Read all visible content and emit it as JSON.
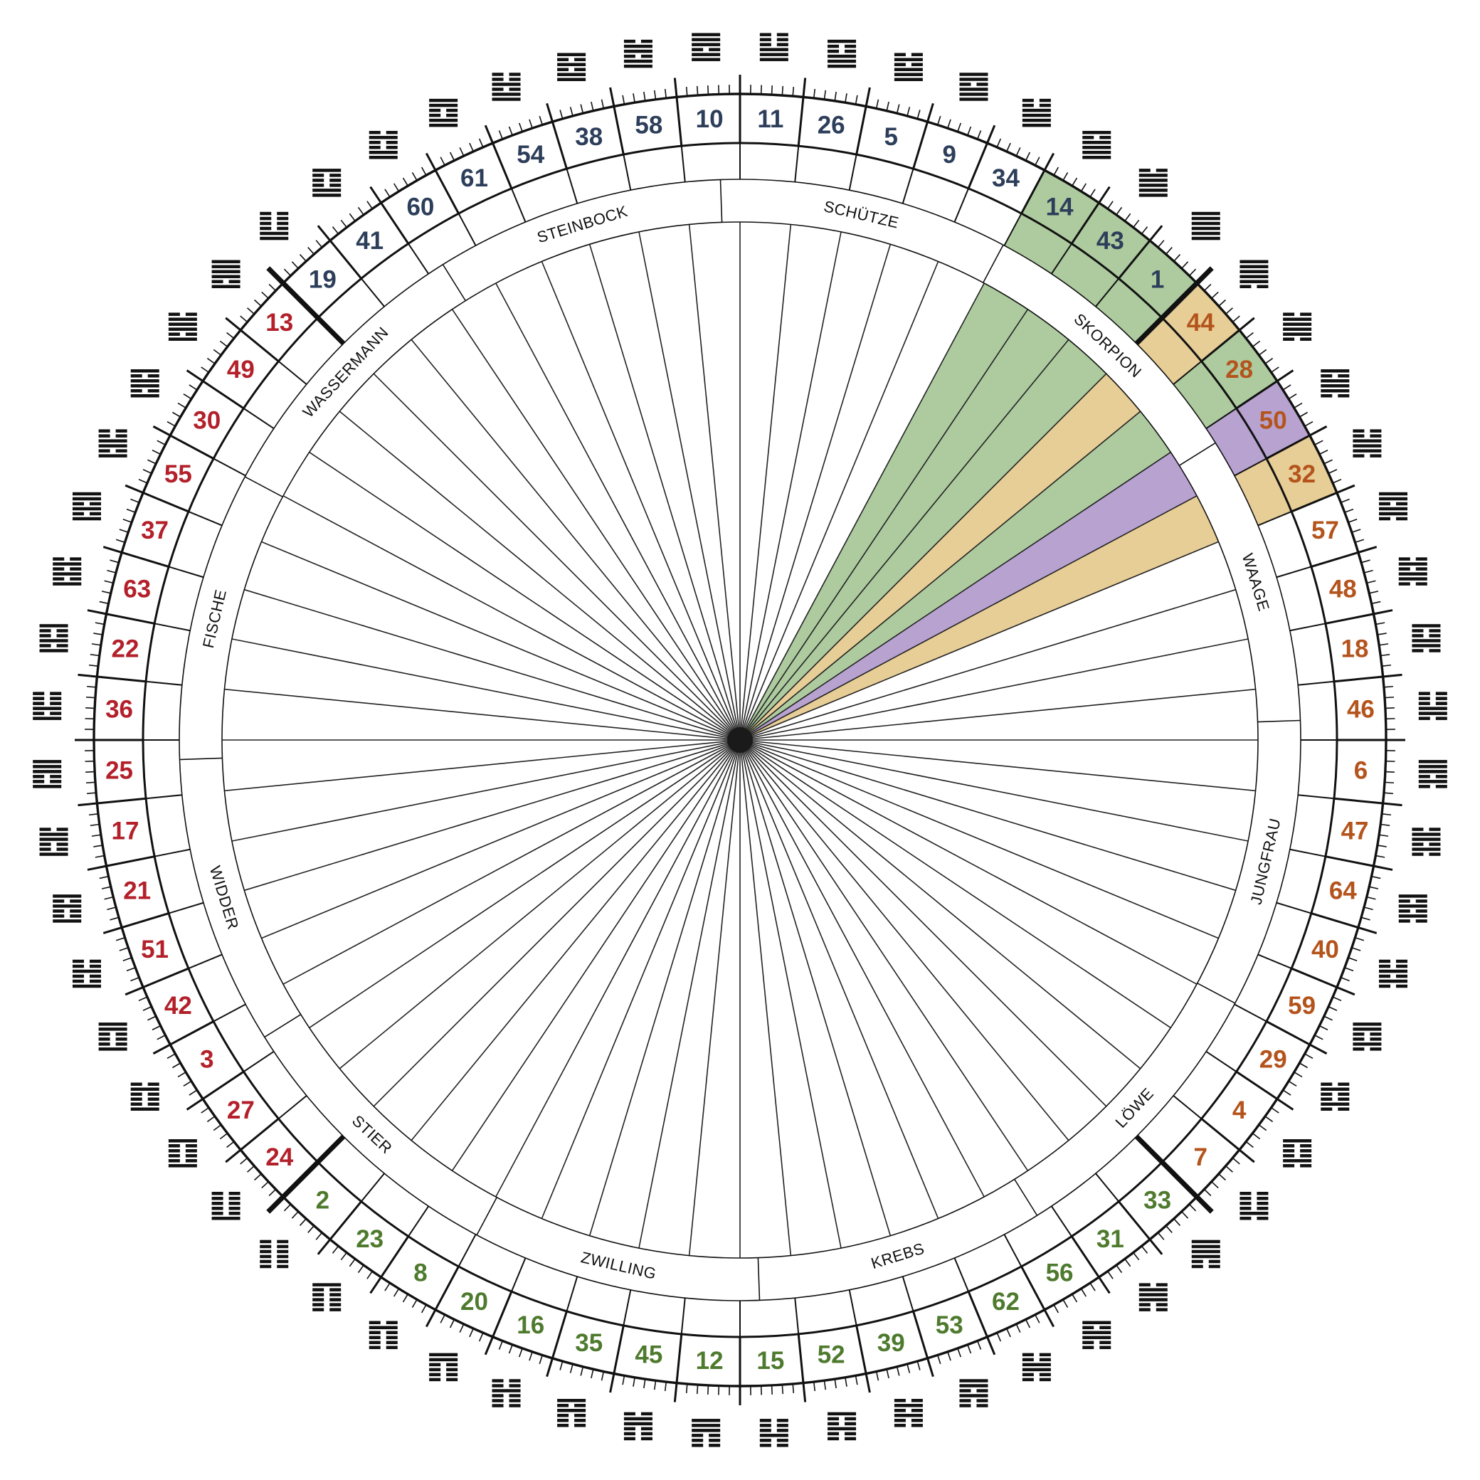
{
  "gates": [
    {
      "number": 11,
      "color": "#2d3e5a"
    },
    {
      "number": 26,
      "color": "#2d3e5a"
    },
    {
      "number": 5,
      "color": "#2d3e5a"
    },
    {
      "number": 9,
      "color": "#2d3e5a"
    },
    {
      "number": 34,
      "color": "#2d3e5a"
    },
    {
      "number": 14,
      "color": "#2d3e5a",
      "fill": "#adcb9f"
    },
    {
      "number": 43,
      "color": "#2d3e5a",
      "fill": "#adcb9f"
    },
    {
      "number": 1,
      "color": "#2d3e5a",
      "fill": "#adcb9f"
    },
    {
      "number": 44,
      "color": "#b4541c",
      "fill": "#e7cd96"
    },
    {
      "number": 28,
      "color": "#b4541c",
      "fill": "#adcb9f"
    },
    {
      "number": 50,
      "color": "#b4541c",
      "fill": "#b7a2d0"
    },
    {
      "number": 32,
      "color": "#b4541c",
      "fill": "#e7cd96"
    },
    {
      "number": 57,
      "color": "#b4541c"
    },
    {
      "number": 48,
      "color": "#b4541c"
    },
    {
      "number": 18,
      "color": "#b4541c"
    },
    {
      "number": 46,
      "color": "#b4541c"
    },
    {
      "number": 6,
      "color": "#b4541c"
    },
    {
      "number": 47,
      "color": "#b4541c"
    },
    {
      "number": 64,
      "color": "#b4541c"
    },
    {
      "number": 40,
      "color": "#b4541c"
    },
    {
      "number": 59,
      "color": "#b4541c"
    },
    {
      "number": 29,
      "color": "#b4541c"
    },
    {
      "number": 4,
      "color": "#b4541c"
    },
    {
      "number": 7,
      "color": "#b4541c"
    },
    {
      "number": 33,
      "color": "#4e7a2e"
    },
    {
      "number": 31,
      "color": "#4e7a2e"
    },
    {
      "number": 56,
      "color": "#4e7a2e"
    },
    {
      "number": 62,
      "color": "#4e7a2e"
    },
    {
      "number": 53,
      "color": "#4e7a2e"
    },
    {
      "number": 39,
      "color": "#4e7a2e"
    },
    {
      "number": 52,
      "color": "#4e7a2e"
    },
    {
      "number": 15,
      "color": "#4e7a2e"
    },
    {
      "number": 12,
      "color": "#4e7a2e"
    },
    {
      "number": 45,
      "color": "#4e7a2e"
    },
    {
      "number": 35,
      "color": "#4e7a2e"
    },
    {
      "number": 16,
      "color": "#4e7a2e"
    },
    {
      "number": 20,
      "color": "#4e7a2e"
    },
    {
      "number": 8,
      "color": "#4e7a2e"
    },
    {
      "number": 23,
      "color": "#4e7a2e"
    },
    {
      "number": 2,
      "color": "#4e7a2e"
    },
    {
      "number": 24,
      "color": "#b3202a"
    },
    {
      "number": 27,
      "color": "#b3202a"
    },
    {
      "number": 3,
      "color": "#b3202a"
    },
    {
      "number": 42,
      "color": "#b3202a"
    },
    {
      "number": 51,
      "color": "#b3202a"
    },
    {
      "number": 21,
      "color": "#b3202a"
    },
    {
      "number": 17,
      "color": "#b3202a"
    },
    {
      "number": 25,
      "color": "#b3202a"
    },
    {
      "number": 36,
      "color": "#b3202a"
    },
    {
      "number": 22,
      "color": "#b3202a"
    },
    {
      "number": 63,
      "color": "#b3202a"
    },
    {
      "number": 37,
      "color": "#b3202a"
    },
    {
      "number": 55,
      "color": "#b3202a"
    },
    {
      "number": 30,
      "color": "#b3202a"
    },
    {
      "number": 49,
      "color": "#b3202a"
    },
    {
      "number": 13,
      "color": "#b3202a"
    },
    {
      "number": 19,
      "color": "#2d3e5a"
    },
    {
      "number": 41,
      "color": "#2d3e5a"
    },
    {
      "number": 60,
      "color": "#2d3e5a"
    },
    {
      "number": 61,
      "color": "#2d3e5a"
    },
    {
      "number": 54,
      "color": "#2d3e5a"
    },
    {
      "number": 38,
      "color": "#2d3e5a"
    },
    {
      "number": 58,
      "color": "#2d3e5a"
    },
    {
      "number": 10,
      "color": "#2d3e5a"
    }
  ],
  "zodiac": [
    "SCHÜTZE",
    "SKORPION",
    "WAAGE",
    "JUNGFRAU",
    "LÖWE",
    "KREBS",
    "ZWILLING",
    "STIER",
    "WIDDER",
    "FISCHE",
    "WASSERMANN",
    "STEINBOCK"
  ]
}
